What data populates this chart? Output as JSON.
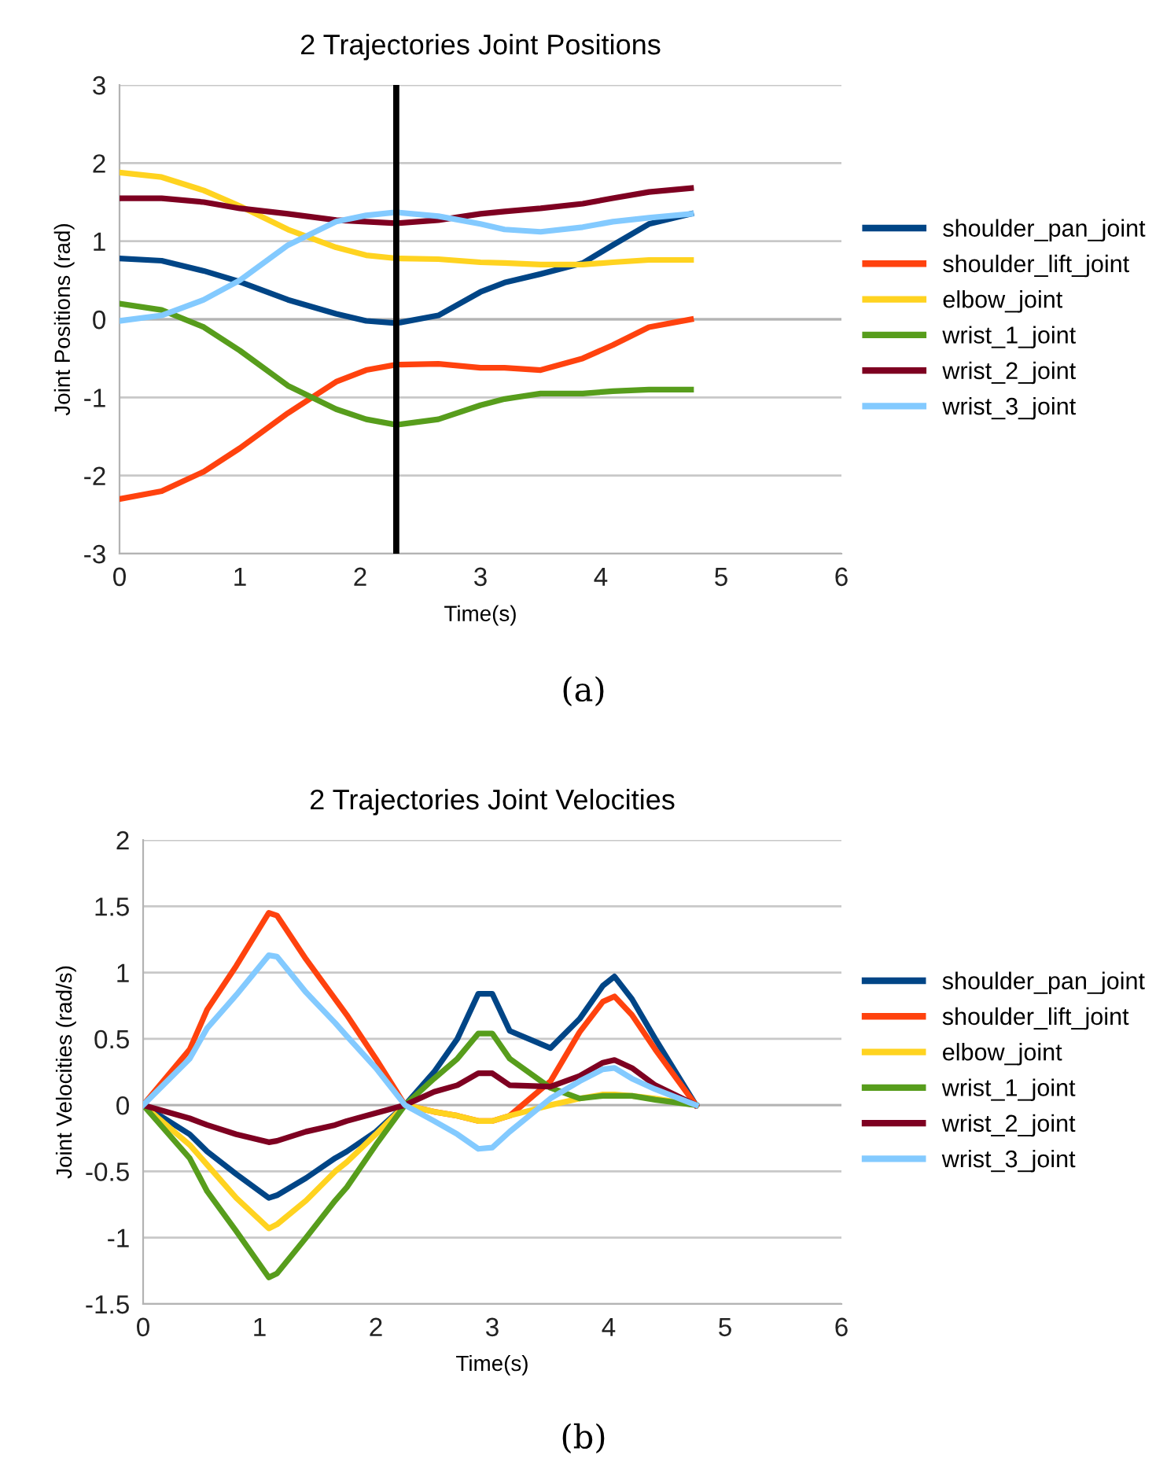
{
  "chart_data": [
    {
      "type": "line",
      "title": "2 Trajectories Joint Positions",
      "xlabel": "Time(s)",
      "ylabel": "Joint Positions (rad)",
      "x": [
        0,
        0.35,
        0.7,
        1,
        1.4,
        1.8,
        2.05,
        2.3,
        2.65,
        3,
        3.2,
        3.5,
        3.85,
        4.1,
        4.4,
        4.75
      ],
      "series": [
        {
          "name": "shoulder_pan_joint",
          "color": "#004586",
          "values": [
            0.78,
            0.75,
            0.62,
            0.48,
            0.25,
            0.07,
            -0.02,
            -0.05,
            0.05,
            0.35,
            0.47,
            0.58,
            0.72,
            0.95,
            1.22,
            1.35
          ]
        },
        {
          "name": "shoulder_lift_joint",
          "color": "#ff420e",
          "values": [
            -2.3,
            -2.2,
            -1.95,
            -1.65,
            -1.2,
            -0.8,
            -0.65,
            -0.58,
            -0.57,
            -0.62,
            -0.62,
            -0.65,
            -0.5,
            -0.33,
            -0.1,
            0.0
          ]
        },
        {
          "name": "elbow_joint",
          "color": "#ffd320",
          "values": [
            1.88,
            1.82,
            1.65,
            1.45,
            1.15,
            0.92,
            0.82,
            0.78,
            0.77,
            0.73,
            0.72,
            0.7,
            0.7,
            0.73,
            0.76,
            0.76
          ]
        },
        {
          "name": "wrist_1_joint",
          "color": "#579d1c",
          "values": [
            0.2,
            0.12,
            -0.1,
            -0.4,
            -0.85,
            -1.15,
            -1.28,
            -1.35,
            -1.28,
            -1.1,
            -1.02,
            -0.95,
            -0.95,
            -0.92,
            -0.9,
            -0.9
          ]
        },
        {
          "name": "wrist_2_joint",
          "color": "#7e0021",
          "values": [
            1.55,
            1.55,
            1.5,
            1.42,
            1.35,
            1.27,
            1.25,
            1.23,
            1.27,
            1.35,
            1.38,
            1.42,
            1.48,
            1.55,
            1.63,
            1.68
          ]
        },
        {
          "name": "wrist_3_joint",
          "color": "#83caff",
          "values": [
            -0.02,
            0.05,
            0.25,
            0.5,
            0.95,
            1.25,
            1.33,
            1.37,
            1.32,
            1.22,
            1.15,
            1.12,
            1.18,
            1.25,
            1.3,
            1.35
          ]
        }
      ],
      "xlim": [
        0,
        6
      ],
      "xticks": [
        0,
        1,
        2,
        3,
        4,
        5,
        6
      ],
      "ylim": [
        -3,
        3
      ],
      "yticks": [
        -3,
        -2,
        -1,
        0,
        1,
        2,
        3
      ],
      "ref_lines": [
        {
          "axis": "x",
          "value": 2.3,
          "color": "#000000"
        }
      ],
      "grid": "y",
      "legend": "right",
      "marker": "none",
      "line_style": "solid",
      "annotations": [
        "(a)"
      ]
    },
    {
      "type": "line",
      "title": "2 Trajectories Joint Velocities",
      "xlabel": "Time(s)",
      "ylabel": "Joint Velocities (rad/s)",
      "x": [
        0,
        0.4,
        0.55,
        0.8,
        1.08,
        1.15,
        1.4,
        1.65,
        1.75,
        2.0,
        2.25,
        2.5,
        2.7,
        2.88,
        3.0,
        3.15,
        3.5,
        3.75,
        3.95,
        4.05,
        4.2,
        4.4,
        4.75
      ],
      "series": [
        {
          "name": "shoulder_pan_joint",
          "color": "#004586",
          "values": [
            0,
            -0.22,
            -0.35,
            -0.52,
            -0.7,
            -0.68,
            -0.55,
            -0.4,
            -0.35,
            -0.2,
            0,
            0.25,
            0.5,
            0.84,
            0.84,
            0.56,
            0.43,
            0.65,
            0.9,
            0.97,
            0.8,
            0.5,
            0
          ]
        },
        {
          "name": "shoulder_lift_joint",
          "color": "#ff420e",
          "values": [
            0,
            0.42,
            0.72,
            1.05,
            1.45,
            1.43,
            1.1,
            0.8,
            0.68,
            0.35,
            0,
            -0.05,
            -0.08,
            -0.12,
            -0.12,
            -0.08,
            0.18,
            0.55,
            0.78,
            0.82,
            0.68,
            0.42,
            0
          ]
        },
        {
          "name": "elbow_joint",
          "color": "#ffd320",
          "values": [
            0,
            -0.3,
            -0.45,
            -0.7,
            -0.93,
            -0.9,
            -0.72,
            -0.5,
            -0.43,
            -0.22,
            0,
            -0.05,
            -0.08,
            -0.12,
            -0.12,
            -0.08,
            0.0,
            0.05,
            0.08,
            0.08,
            0.07,
            0.05,
            0
          ]
        },
        {
          "name": "wrist_1_joint",
          "color": "#579d1c",
          "values": [
            0,
            -0.4,
            -0.65,
            -0.95,
            -1.3,
            -1.27,
            -1.0,
            -0.72,
            -0.62,
            -0.3,
            0,
            0.2,
            0.35,
            0.54,
            0.54,
            0.35,
            0.13,
            0.05,
            0.07,
            0.07,
            0.07,
            0.04,
            0
          ]
        },
        {
          "name": "wrist_2_joint",
          "color": "#7e0021",
          "values": [
            0,
            -0.1,
            -0.15,
            -0.22,
            -0.28,
            -0.27,
            -0.2,
            -0.15,
            -0.12,
            -0.06,
            0,
            0.1,
            0.15,
            0.24,
            0.24,
            0.15,
            0.14,
            0.22,
            0.32,
            0.34,
            0.28,
            0.15,
            0
          ]
        },
        {
          "name": "wrist_3_joint",
          "color": "#83caff",
          "values": [
            0,
            0.35,
            0.58,
            0.83,
            1.13,
            1.12,
            0.85,
            0.62,
            0.52,
            0.28,
            0,
            -0.12,
            -0.22,
            -0.33,
            -0.32,
            -0.2,
            0.05,
            0.18,
            0.27,
            0.28,
            0.2,
            0.12,
            0
          ]
        }
      ],
      "xlim": [
        0,
        6
      ],
      "xticks": [
        0,
        1,
        2,
        3,
        4,
        5,
        6
      ],
      "ylim": [
        -1.5,
        2
      ],
      "yticks": [
        -1.5,
        -1,
        -0.5,
        0,
        0.5,
        1,
        1.5,
        2
      ],
      "grid": "y",
      "legend": "right",
      "marker": "none",
      "line_style": "solid",
      "annotations": [
        "(b)"
      ]
    }
  ]
}
